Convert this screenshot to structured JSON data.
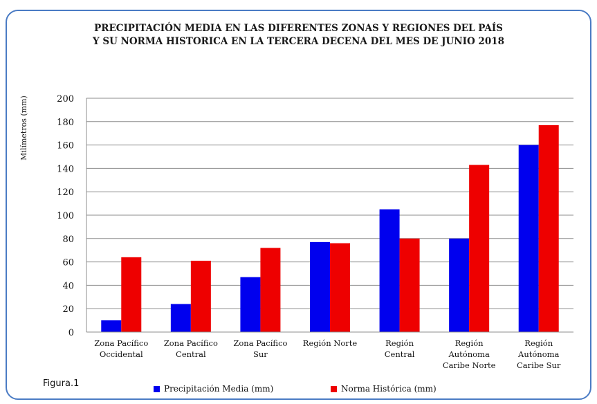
{
  "chart_data": {
    "type": "bar",
    "title_line1": "PRECIPITACIÓN MEDIA EN LAS DIFERENTES ZONAS Y REGIONES DEL PAÍS",
    "title_line2": "Y SU NORMA HISTORICA EN LA TERCERA DECENA DEL MES DE JUNIO 2018",
    "ylabel": "Milímetros (mm)",
    "ylim": [
      0,
      200
    ],
    "yticks": [
      0,
      20,
      40,
      60,
      80,
      100,
      120,
      140,
      160,
      180,
      200
    ],
    "grid": true,
    "legend_position": "bottom",
    "categories": [
      [
        "Zona Pacífico",
        "Occidental"
      ],
      [
        "Zona Pacífico",
        "Central"
      ],
      [
        "Zona Pacífico",
        "Sur"
      ],
      [
        "Región Norte"
      ],
      [
        "Región",
        "Central"
      ],
      [
        "Región",
        "Autónoma",
        "Caribe Norte"
      ],
      [
        "Región",
        "Autónoma",
        "Caribe Sur"
      ]
    ],
    "series": [
      {
        "name": "Precipitación Media (mm)",
        "color": "#0000ee",
        "values": [
          10,
          24,
          47,
          77,
          105,
          80,
          160
        ]
      },
      {
        "name": "Norma Histórica (mm)",
        "color": "#ee0000",
        "values": [
          64,
          61,
          72,
          76,
          80,
          143,
          177
        ]
      }
    ],
    "caption": "Figura.1"
  }
}
